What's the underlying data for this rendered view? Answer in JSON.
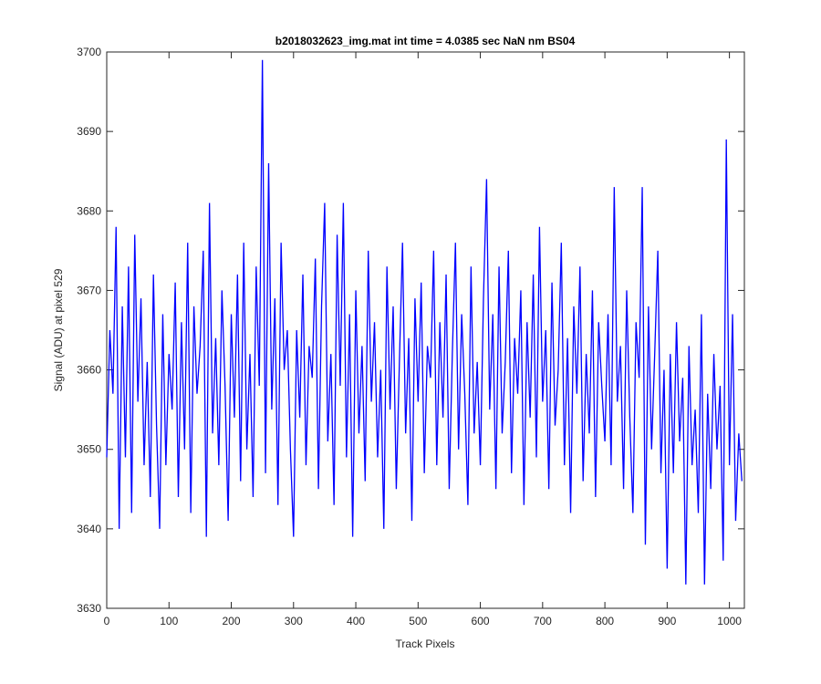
{
  "chart_data": {
    "type": "line",
    "title": "b2018032623_img.mat int time = 4.0385 sec  NaN nm BS04",
    "x_label": "Track Pixels",
    "y_label": "Signal (ADU) at pixel 529",
    "xlim": [
      0,
      1024
    ],
    "ylim": [
      3630,
      3700
    ],
    "xticks": [
      0,
      100,
      200,
      300,
      400,
      500,
      600,
      700,
      800,
      900,
      1000
    ],
    "yticks": [
      3630,
      3640,
      3650,
      3660,
      3670,
      3680,
      3690,
      3700
    ],
    "grid": false,
    "series": [
      {
        "color": "#0000ff",
        "x": [
          0,
          5,
          10,
          15,
          20,
          25,
          30,
          35,
          40,
          45,
          50,
          55,
          60,
          65,
          70,
          75,
          80,
          85,
          90,
          95,
          100,
          105,
          110,
          115,
          120,
          125,
          130,
          135,
          140,
          145,
          150,
          155,
          160,
          165,
          170,
          175,
          180,
          185,
          190,
          195,
          200,
          205,
          210,
          215,
          220,
          225,
          230,
          235,
          240,
          245,
          250,
          255,
          260,
          265,
          270,
          275,
          280,
          285,
          290,
          295,
          300,
          305,
          310,
          315,
          320,
          325,
          330,
          335,
          340,
          345,
          350,
          355,
          360,
          365,
          370,
          375,
          380,
          385,
          390,
          395,
          400,
          405,
          410,
          415,
          420,
          425,
          430,
          435,
          440,
          445,
          450,
          455,
          460,
          465,
          470,
          475,
          480,
          485,
          490,
          495,
          500,
          505,
          510,
          515,
          520,
          525,
          530,
          535,
          540,
          545,
          550,
          555,
          560,
          565,
          570,
          575,
          580,
          585,
          590,
          595,
          600,
          605,
          610,
          615,
          620,
          625,
          630,
          635,
          640,
          645,
          650,
          655,
          660,
          665,
          670,
          675,
          680,
          685,
          690,
          695,
          700,
          705,
          710,
          715,
          720,
          725,
          730,
          735,
          740,
          745,
          750,
          755,
          760,
          765,
          770,
          775,
          780,
          785,
          790,
          795,
          800,
          805,
          810,
          815,
          820,
          825,
          830,
          835,
          840,
          845,
          850,
          855,
          860,
          865,
          870,
          875,
          880,
          885,
          890,
          895,
          900,
          905,
          910,
          915,
          920,
          925,
          930,
          935,
          940,
          945,
          950,
          955,
          960,
          965,
          970,
          975,
          980,
          985,
          990,
          995,
          1000,
          1005,
          1010,
          1015,
          1020
        ],
        "values": [
          3649,
          3665,
          3657,
          3678,
          3640,
          3668,
          3649,
          3673,
          3642,
          3677,
          3656,
          3669,
          3648,
          3661,
          3644,
          3672,
          3653,
          3640,
          3667,
          3648,
          3662,
          3655,
          3671,
          3644,
          3666,
          3650,
          3676,
          3642,
          3668,
          3657,
          3663,
          3675,
          3639,
          3681,
          3652,
          3664,
          3648,
          3670,
          3658,
          3641,
          3667,
          3654,
          3672,
          3646,
          3676,
          3650,
          3662,
          3644,
          3673,
          3658,
          3699,
          3647,
          3686,
          3655,
          3669,
          3643,
          3676,
          3660,
          3665,
          3650,
          3639,
          3665,
          3654,
          3672,
          3648,
          3663,
          3659,
          3674,
          3645,
          3668,
          3681,
          3651,
          3662,
          3643,
          3677,
          3658,
          3681,
          3649,
          3667,
          3639,
          3670,
          3652,
          3663,
          3646,
          3675,
          3656,
          3666,
          3649,
          3660,
          3640,
          3673,
          3655,
          3668,
          3645,
          3661,
          3676,
          3652,
          3664,
          3641,
          3669,
          3656,
          3671,
          3647,
          3663,
          3659,
          3675,
          3648,
          3666,
          3654,
          3672,
          3645,
          3662,
          3676,
          3650,
          3667,
          3657,
          3643,
          3673,
          3652,
          3661,
          3648,
          3669,
          3684,
          3655,
          3667,
          3645,
          3673,
          3652,
          3661,
          3675,
          3647,
          3664,
          3657,
          3670,
          3643,
          3666,
          3654,
          3672,
          3649,
          3678,
          3656,
          3665,
          3645,
          3671,
          3653,
          3660,
          3676,
          3648,
          3664,
          3642,
          3668,
          3657,
          3673,
          3646,
          3662,
          3652,
          3670,
          3644,
          3666,
          3658,
          3651,
          3667,
          3648,
          3683,
          3656,
          3663,
          3645,
          3670,
          3654,
          3642,
          3666,
          3659,
          3683,
          3638,
          3668,
          3650,
          3662,
          3675,
          3647,
          3660,
          3635,
          3662,
          3647,
          3666,
          3651,
          3659,
          3633,
          3663,
          3648,
          3655,
          3642,
          3667,
          3633,
          3657,
          3645,
          3662,
          3650,
          3658,
          3636,
          3689,
          3648,
          3667,
          3641,
          3652,
          3646
        ]
      }
    ]
  }
}
